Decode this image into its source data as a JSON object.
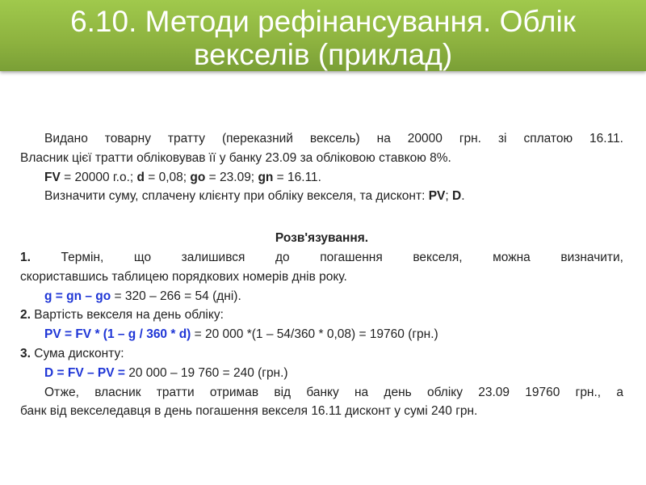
{
  "title": {
    "line1": "6.10. Методи рефінансування. Облік",
    "line2": "векселів (приклад)"
  },
  "colors": {
    "header": "#8db23f",
    "formula": "#1f36d6"
  },
  "problem": {
    "l1": "Видано товарну тратту (переказний вексель) на 20000 грн. зі сплатою 16.11.",
    "l2": "Власник цієї тратти обліковував її у банку 23.09 за обліковою ставкою 8%.",
    "l3": [
      {
        "b": "FV"
      },
      {
        "t": " = 20000 г.о.; "
      },
      {
        "b": "d"
      },
      {
        "t": " = 0,08; "
      },
      {
        "b": "go"
      },
      {
        "t": " = 23.09; "
      },
      {
        "b": "gn"
      },
      {
        "t": " = 16.11."
      }
    ],
    "l4": {
      "t": "Визначити суму, сплачену клієнту при обліку векселя, та дисконт: ",
      "b1": "PV",
      "sep": "; ",
      "b2": "D",
      "end": "."
    }
  },
  "solution": {
    "heading": "Розв'язування.",
    "step1": {
      "num": "1.",
      "text": " Термін, що залишився до погашення векселя, можна визначити,",
      "cont": "скориставшись таблицею порядкових номерів днів року.",
      "formula": "g = gn – go",
      "calc": " = 320 – 266 = 54 (дні)."
    },
    "step2": {
      "num": "2.",
      "text": " Вартість векселя на день обліку:",
      "formula": "PV = FV * (1 – g / 360 * d)",
      "calc": " = 20 000 *(1 – 54/360 * 0,08) = 19760 (грн.)"
    },
    "step3": {
      "num": "3.",
      "text": " Сума дисконту:",
      "formula": "D = FV – PV =",
      "calc": " 20 000 – 19 760 = 240 (грн.)"
    },
    "conclusion": {
      "l1": "Отже, власник тратти отримав від банку на день обліку 23.09 19760 грн., а",
      "l2": "банк від векселедавця в день погашення векселя 16.11 дисконт у сумі 240 грн."
    }
  }
}
